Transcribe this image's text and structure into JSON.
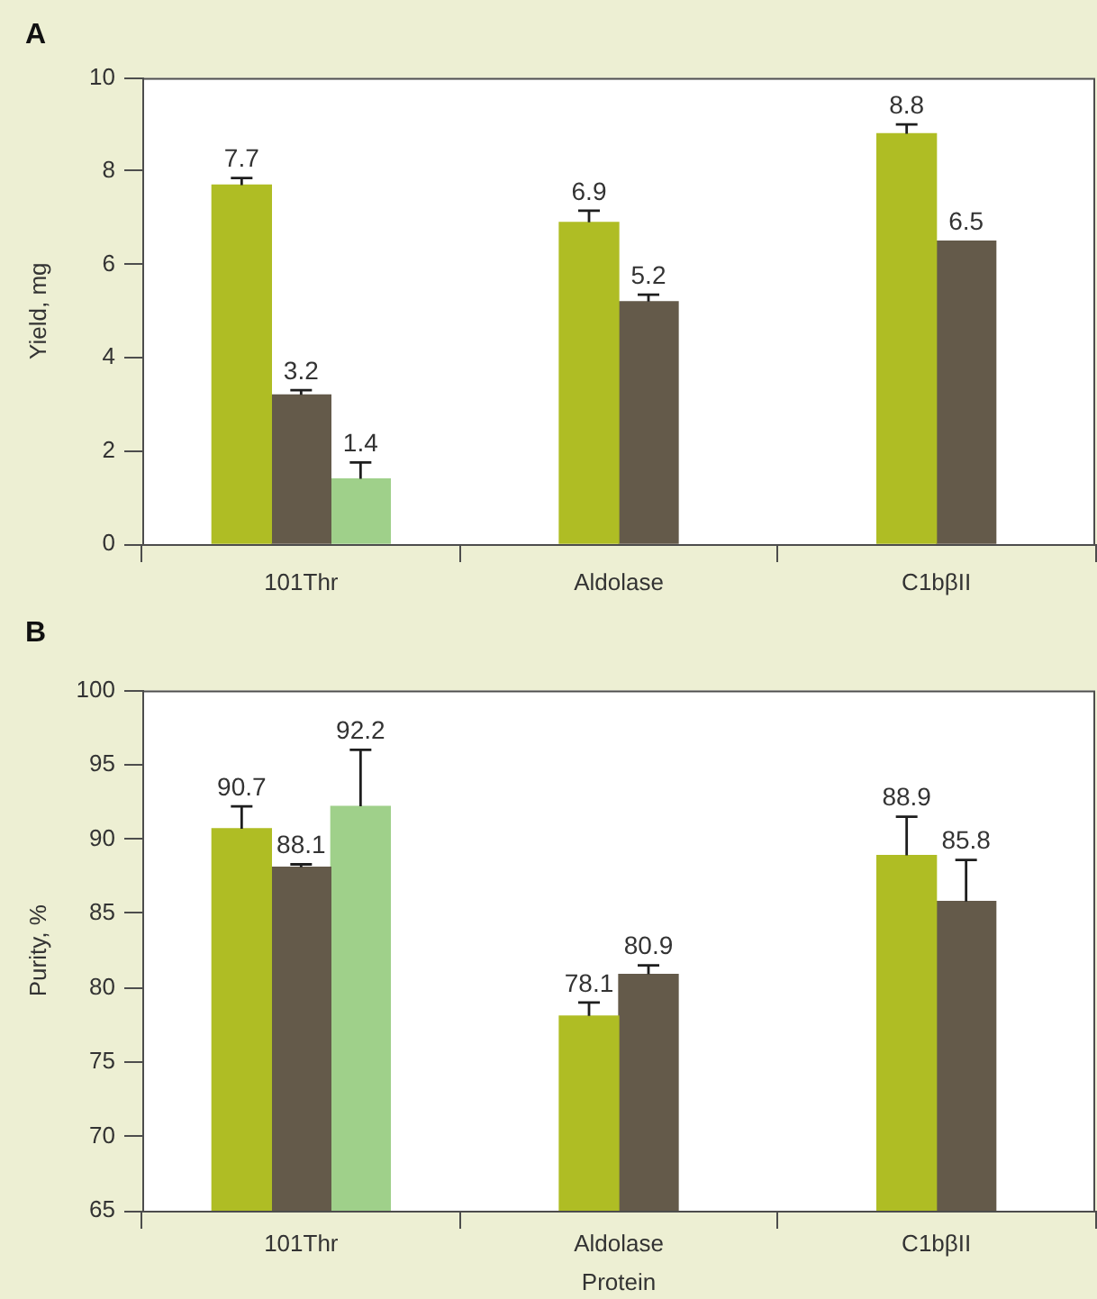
{
  "chart_data": [
    {
      "type": "bar",
      "title": "A",
      "ylabel": "Yield, mg",
      "categories": [
        "101Thr",
        "Aldolase",
        "C1bβII"
      ],
      "series": [
        {
          "color": "#afbd24",
          "values": [
            7.7,
            6.9,
            8.8
          ],
          "errors": [
            [
              7.7,
              7.85
            ],
            [
              6.9,
              7.15
            ],
            [
              8.8,
              9.0
            ]
          ]
        },
        {
          "color": "#645a4a",
          "values": [
            3.2,
            5.2,
            6.5
          ],
          "errors": [
            [
              3.2,
              3.3
            ],
            [
              5.2,
              5.35
            ],
            null
          ]
        },
        {
          "color": "#9fd08a",
          "values": [
            1.4,
            null,
            null
          ],
          "errors": [
            [
              1.4,
              1.75
            ],
            null,
            null
          ]
        }
      ],
      "ylim": [
        0,
        10
      ],
      "yticks": [
        0,
        2,
        4,
        6,
        8,
        10
      ],
      "data_labels": true
    },
    {
      "type": "bar",
      "title": "B",
      "ylabel": "Purity, %",
      "xlabel": "Protein",
      "categories": [
        "101Thr",
        "Aldolase",
        "C1bβII"
      ],
      "series": [
        {
          "color": "#afbd24",
          "values": [
            90.7,
            78.1,
            88.9
          ],
          "errors": [
            [
              90.7,
              92.2
            ],
            [
              78.1,
              79.0
            ],
            [
              88.9,
              91.5
            ]
          ]
        },
        {
          "color": "#645a4a",
          "values": [
            88.1,
            80.9,
            85.8
          ],
          "errors": [
            [
              88.1,
              88.3
            ],
            [
              80.9,
              81.5
            ],
            [
              85.8,
              88.6
            ]
          ]
        },
        {
          "color": "#9fd08a",
          "values": [
            92.2,
            null,
            null
          ],
          "errors": [
            [
              92.2,
              96.0
            ],
            null,
            null
          ]
        }
      ],
      "ylim": [
        65,
        100
      ],
      "yticks": [
        65,
        70,
        75,
        80,
        85,
        90,
        95,
        100
      ],
      "data_labels": true
    }
  ]
}
